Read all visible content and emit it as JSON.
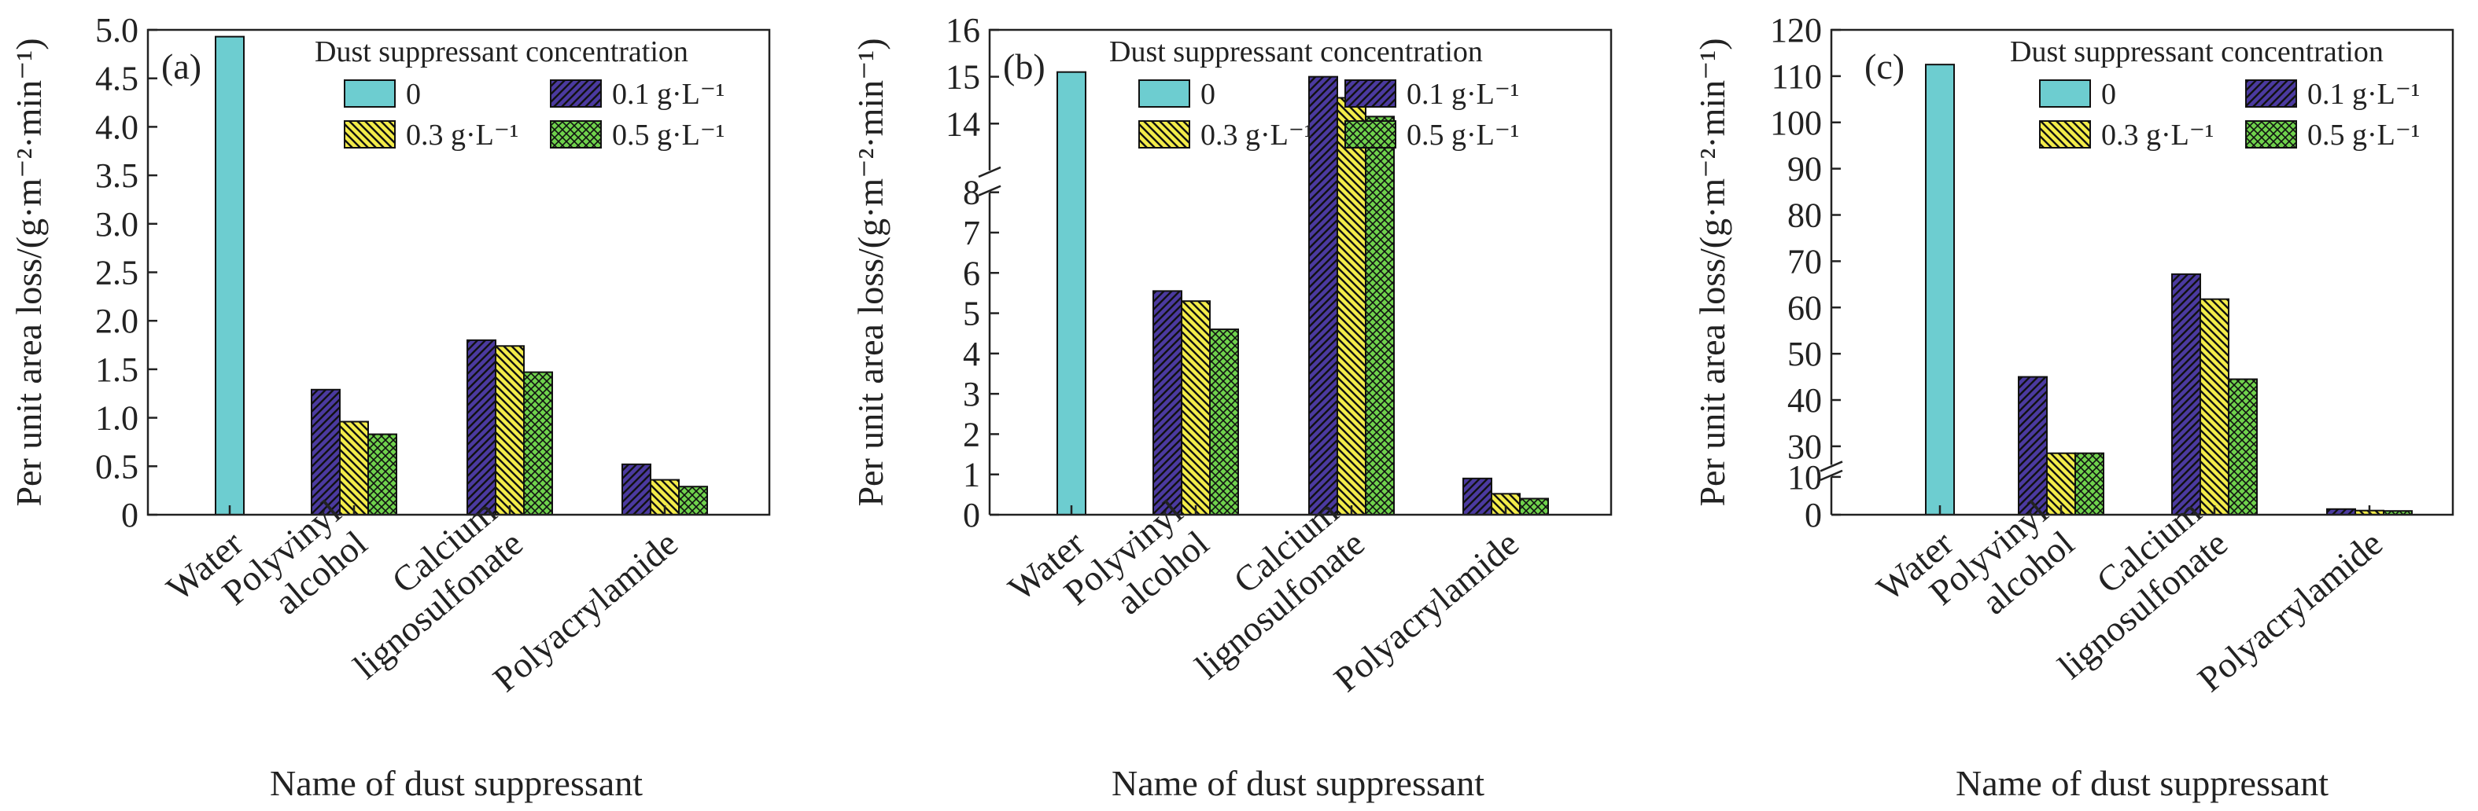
{
  "colors": {
    "water": "#6dcdd0",
    "c01": "#4b3aa0",
    "c03": "#f3ec4a",
    "c05": "#6fd24c"
  },
  "chart_data": [
    {
      "type": "bar",
      "panel_label": "(a)",
      "categories": [
        "Water",
        "Polyvinyl alcohol",
        "Calcium lignosulfonate",
        "Polyacrylamide"
      ],
      "category_labels": [
        [
          "Water"
        ],
        [
          "Polyvinyl",
          "alcohol"
        ],
        [
          "Calcium",
          "lignosulfonate"
        ],
        [
          "Polyacrylamide"
        ]
      ],
      "series": [
        {
          "name": "0",
          "values": [
            4.93,
            null,
            null,
            null
          ]
        },
        {
          "name": "0.1 g·L⁻¹",
          "values": [
            null,
            1.29,
            1.8,
            0.52
          ]
        },
        {
          "name": "0.3 g·L⁻¹",
          "values": [
            null,
            0.96,
            1.74,
            0.36
          ]
        },
        {
          "name": "0.5 g·L⁻¹",
          "values": [
            null,
            0.83,
            1.47,
            0.29
          ]
        }
      ],
      "legend_title": "Dust suppressant concentration",
      "xlabel": "Name of dust suppressant",
      "ylabel": "Per unit area loss/(g·m⁻²·min⁻¹)",
      "ylim": [
        0,
        5.0
      ],
      "yticks": [
        0,
        0.5,
        1.0,
        1.5,
        2.0,
        2.5,
        3.0,
        3.5,
        4.0,
        4.5,
        5.0
      ],
      "ytick_labels": [
        "0",
        "0.5",
        "1.0",
        "1.5",
        "2.0",
        "2.5",
        "3.0",
        "3.5",
        "4.0",
        "4.5",
        "5.0"
      ],
      "axis_break": null,
      "legend": "top-right",
      "grid": false
    },
    {
      "type": "bar",
      "panel_label": "(b)",
      "categories": [
        "Water",
        "Polyvinyl alcohol",
        "Calcium lignosulfonate",
        "Polyacrylamide"
      ],
      "category_labels": [
        [
          "Water"
        ],
        [
          "Polyvinyl",
          "alcohol"
        ],
        [
          "Calcium",
          "lignosulfonate"
        ],
        [
          "Polyacrylamide"
        ]
      ],
      "series": [
        {
          "name": "0",
          "values": [
            15.1,
            null,
            null,
            null
          ]
        },
        {
          "name": "0.1 g·L⁻¹",
          "values": [
            null,
            5.55,
            15.0,
            0.9
          ]
        },
        {
          "name": "0.3 g·L⁻¹",
          "values": [
            null,
            5.3,
            14.55,
            0.52
          ]
        },
        {
          "name": "0.5 g·L⁻¹",
          "values": [
            null,
            4.6,
            14.15,
            0.4
          ]
        }
      ],
      "legend_title": "Dust suppressant concentration",
      "xlabel": "Name of dust suppressant",
      "ylabel": "Per unit area loss/(g·m⁻²·min⁻¹)",
      "ylim": [
        0,
        16
      ],
      "yticks": [
        0,
        1,
        2,
        3,
        4,
        5,
        6,
        7,
        8,
        14,
        15,
        16
      ],
      "ytick_labels": [
        "0",
        "1",
        "2",
        "3",
        "4",
        "5",
        "6",
        "7",
        "8",
        "14",
        "15",
        "16"
      ],
      "axis_break": [
        8,
        13.3
      ],
      "legend": "top-right",
      "grid": false
    },
    {
      "type": "bar",
      "panel_label": "(c)",
      "categories": [
        "Water",
        "Polyvinyl alcohol",
        "Calcium lignosulfonate",
        "Polyacrylamide"
      ],
      "category_labels": [
        [
          "Water"
        ],
        [
          "Polyvinyl",
          "alcohol"
        ],
        [
          "Calcium",
          "lignosulfonate"
        ],
        [
          "Polyacrylamide"
        ]
      ],
      "series": [
        {
          "name": "0",
          "values": [
            112.5,
            null,
            null,
            null
          ]
        },
        {
          "name": "0.1 g·L⁻¹",
          "values": [
            null,
            45.0,
            67.2,
            1.5
          ]
        },
        {
          "name": "0.3 g·L⁻¹",
          "values": [
            null,
            28.5,
            61.8,
            1.1
          ]
        },
        {
          "name": "0.5 g·L⁻¹",
          "values": [
            null,
            28.5,
            44.5,
            1.0
          ]
        }
      ],
      "legend_title": "Dust suppressant concentration",
      "xlabel": "Name of dust suppressant",
      "ylabel": "Per unit area loss/(g·m⁻²·min⁻¹)",
      "ylim": [
        0,
        120
      ],
      "yticks": [
        0,
        10,
        30,
        40,
        50,
        60,
        70,
        80,
        90,
        100,
        110,
        120
      ],
      "ytick_labels": [
        "0",
        "10",
        "30",
        "40",
        "50",
        "60",
        "70",
        "80",
        "90",
        "100",
        "110",
        "120"
      ],
      "axis_break": [
        10,
        26
      ],
      "legend": "top-right",
      "grid": false
    }
  ]
}
